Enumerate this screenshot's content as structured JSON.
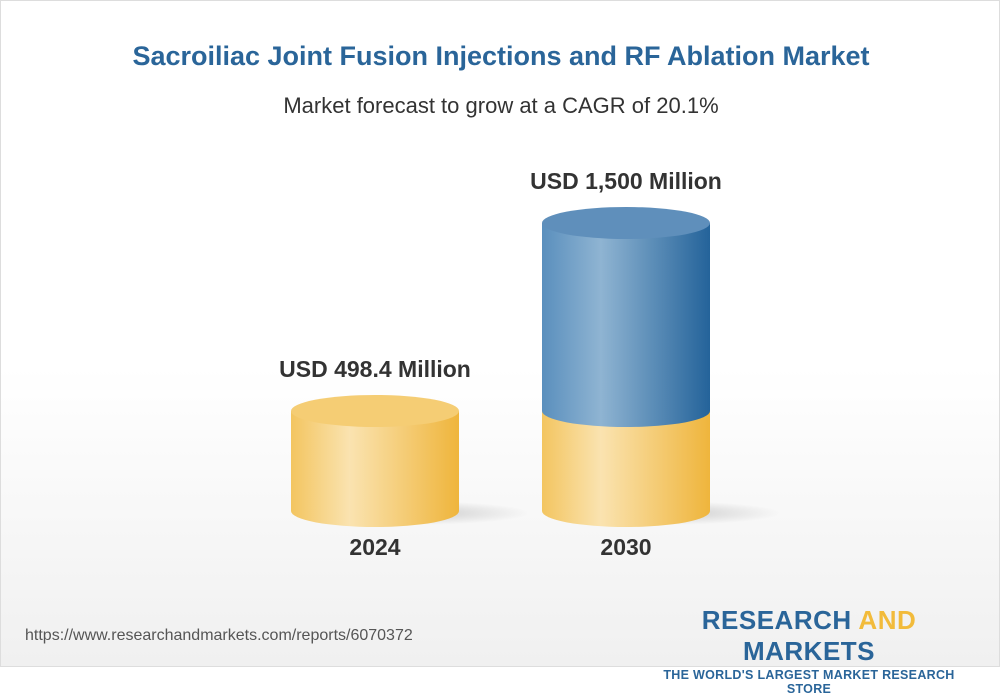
{
  "header": {
    "title": "Sacroiliac Joint Fusion Injections and RF Ablation Market",
    "subtitle": "Market forecast to grow at a CAGR of 20.1%"
  },
  "chart_data": {
    "type": "bar",
    "style": "3d-cylinder",
    "categories": [
      "2024",
      "2030"
    ],
    "values": [
      498.4,
      1500
    ],
    "data_labels": [
      "USD 498.4 Million",
      "USD 1,500 Million"
    ],
    "unit": "USD Million",
    "colors": {
      "base": "#f2c14e",
      "growth": "#2e6fa3"
    },
    "grid": false
  },
  "footer": {
    "url": "https://www.researchandmarkets.com/reports/6070372",
    "logo_word1": "RESEARCH",
    "logo_word2": "AND",
    "logo_word3": "MARKETS",
    "logo_tagline": "THE WORLD'S LARGEST MARKET RESEARCH STORE"
  }
}
